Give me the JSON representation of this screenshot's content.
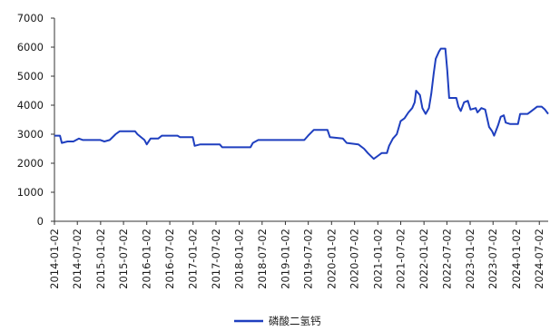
{
  "chart_data": {
    "type": "line",
    "title": "",
    "xlabel": "",
    "ylabel": "",
    "ylim": [
      0,
      7000
    ],
    "yticks": [
      0,
      1000,
      2000,
      3000,
      4000,
      5000,
      6000,
      7000
    ],
    "xticks": [
      "2014-01-02",
      "2014-07-02",
      "2015-01-02",
      "2015-07-02",
      "2016-01-02",
      "2016-07-02",
      "2017-01-02",
      "2017-07-02",
      "2018-01-02",
      "2018-07-02",
      "2019-01-02",
      "2019-07-02",
      "2020-01-02",
      "2020-07-02",
      "2021-01-02",
      "2021-07-02",
      "2022-01-02",
      "2022-07-02",
      "2023-01-02",
      "2023-07-02",
      "2024-01-02",
      "2024-07-02"
    ],
    "grid": false,
    "legend_position": "bottom-center",
    "series": [
      {
        "name": "磷酸二氢钙",
        "color": "#1f3fbf",
        "points": [
          [
            "2014-01-02",
            2950
          ],
          [
            "2014-02-15",
            2950
          ],
          [
            "2014-03-01",
            2700
          ],
          [
            "2014-04-15",
            2750
          ],
          [
            "2014-06-01",
            2750
          ],
          [
            "2014-07-15",
            2850
          ],
          [
            "2014-08-15",
            2800
          ],
          [
            "2014-12-31",
            2800
          ],
          [
            "2015-02-01",
            2750
          ],
          [
            "2015-03-15",
            2800
          ],
          [
            "2015-05-01",
            3000
          ],
          [
            "2015-06-01",
            3100
          ],
          [
            "2015-10-01",
            3100
          ],
          [
            "2015-10-20",
            3000
          ],
          [
            "2015-12-15",
            2800
          ],
          [
            "2016-01-02",
            2650
          ],
          [
            "2016-02-01",
            2850
          ],
          [
            "2016-04-01",
            2850
          ],
          [
            "2016-05-01",
            2950
          ],
          [
            "2016-09-01",
            2950
          ],
          [
            "2016-09-20",
            2900
          ],
          [
            "2016-12-31",
            2900
          ],
          [
            "2017-01-15",
            2600
          ],
          [
            "2017-03-01",
            2650
          ],
          [
            "2017-08-01",
            2650
          ],
          [
            "2017-08-20",
            2550
          ],
          [
            "2018-04-01",
            2550
          ],
          [
            "2018-04-20",
            2700
          ],
          [
            "2018-06-01",
            2800
          ],
          [
            "2018-12-31",
            2800
          ],
          [
            "2019-06-01",
            2800
          ],
          [
            "2019-07-01",
            2950
          ],
          [
            "2019-08-15",
            3150
          ],
          [
            "2019-12-01",
            3150
          ],
          [
            "2019-12-20",
            2900
          ],
          [
            "2020-04-01",
            2850
          ],
          [
            "2020-05-01",
            2700
          ],
          [
            "2020-08-01",
            2650
          ],
          [
            "2020-09-15",
            2500
          ],
          [
            "2020-10-15",
            2350
          ],
          [
            "2020-12-01",
            2150
          ],
          [
            "2021-01-01",
            2250
          ],
          [
            "2021-02-01",
            2350
          ],
          [
            "2021-03-15",
            2350
          ],
          [
            "2021-04-01",
            2600
          ],
          [
            "2021-05-01",
            2850
          ],
          [
            "2021-06-01",
            3000
          ],
          [
            "2021-07-01",
            3450
          ],
          [
            "2021-08-01",
            3550
          ],
          [
            "2021-09-01",
            3750
          ],
          [
            "2021-10-01",
            3900
          ],
          [
            "2021-10-20",
            4100
          ],
          [
            "2021-11-01",
            4500
          ],
          [
            "2021-12-01",
            4350
          ],
          [
            "2021-12-20",
            3900
          ],
          [
            "2022-01-15",
            3700
          ],
          [
            "2022-02-10",
            3900
          ],
          [
            "2022-03-01",
            4400
          ],
          [
            "2022-03-20",
            5100
          ],
          [
            "2022-04-05",
            5600
          ],
          [
            "2022-05-01",
            5850
          ],
          [
            "2022-05-15",
            5950
          ],
          [
            "2022-06-20",
            5950
          ],
          [
            "2022-07-05",
            5200
          ],
          [
            "2022-07-20",
            4250
          ],
          [
            "2022-09-15",
            4250
          ],
          [
            "2022-10-01",
            3950
          ],
          [
            "2022-10-20",
            3800
          ],
          [
            "2022-11-15",
            4100
          ],
          [
            "2022-12-15",
            4150
          ],
          [
            "2023-01-05",
            3850
          ],
          [
            "2023-02-15",
            3900
          ],
          [
            "2023-03-01",
            3750
          ],
          [
            "2023-04-01",
            3900
          ],
          [
            "2023-05-01",
            3850
          ],
          [
            "2023-06-01",
            3250
          ],
          [
            "2023-06-25",
            3100
          ],
          [
            "2023-07-10",
            2950
          ],
          [
            "2023-08-10",
            3300
          ],
          [
            "2023-09-01",
            3600
          ],
          [
            "2023-09-25",
            3650
          ],
          [
            "2023-10-10",
            3400
          ],
          [
            "2023-11-15",
            3350
          ],
          [
            "2024-01-15",
            3350
          ],
          [
            "2024-02-01",
            3700
          ],
          [
            "2024-04-01",
            3700
          ],
          [
            "2024-05-01",
            3800
          ],
          [
            "2024-06-15",
            3950
          ],
          [
            "2024-07-20",
            3950
          ],
          [
            "2024-08-15",
            3850
          ],
          [
            "2024-09-10",
            3700
          ]
        ]
      }
    ]
  }
}
